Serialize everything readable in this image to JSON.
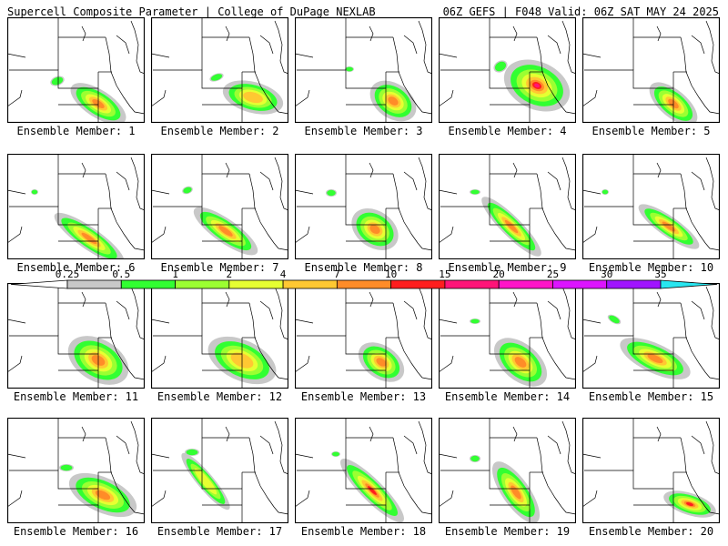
{
  "header": {
    "left": "Supercell Composite Parameter | College of DuPage NEXLAB",
    "right": "06Z GEFS | F048 Valid: 06Z SAT MAY 24 2025"
  },
  "legend": {
    "ticks": [
      "0.25",
      "0.5",
      "1",
      "2",
      "4",
      "7",
      "10",
      "15",
      "20",
      "25",
      "30",
      "35"
    ],
    "colors": [
      "#c8c8c8",
      "#32ff32",
      "#9bff32",
      "#e6ff32",
      "#ffc832",
      "#ff8c28",
      "#ff1e1e",
      "#ff1478",
      "#ff14c8",
      "#dc14ff",
      "#a014ff",
      "#b46ee6",
      "#28e6f0"
    ]
  },
  "panels": [
    {
      "label": "Ensemble Member: 1"
    },
    {
      "label": "Ensemble Member: 2"
    },
    {
      "label": "Ensemble Member: 3"
    },
    {
      "label": "Ensemble Member: 4"
    },
    {
      "label": "Ensemble Member: 5"
    },
    {
      "label": "Ensemble Member: 6"
    },
    {
      "label": "Ensemble Member: 7"
    },
    {
      "label": "Ensemble Member: 8"
    },
    {
      "label": "Ensemble Member: 9"
    },
    {
      "label": "Ensemble Member: 10"
    },
    {
      "label": "Ensemble Member: 11"
    },
    {
      "label": "Ensemble Member: 12"
    },
    {
      "label": "Ensemble Member: 13"
    },
    {
      "label": "Ensemble Member: 14"
    },
    {
      "label": "Ensemble Member: 15"
    },
    {
      "label": "Ensemble Member: 16"
    },
    {
      "label": "Ensemble Member: 17"
    },
    {
      "label": "Ensemble Member: 18"
    },
    {
      "label": "Ensemble Member: 19"
    },
    {
      "label": "Ensemble Member: 20"
    }
  ]
}
